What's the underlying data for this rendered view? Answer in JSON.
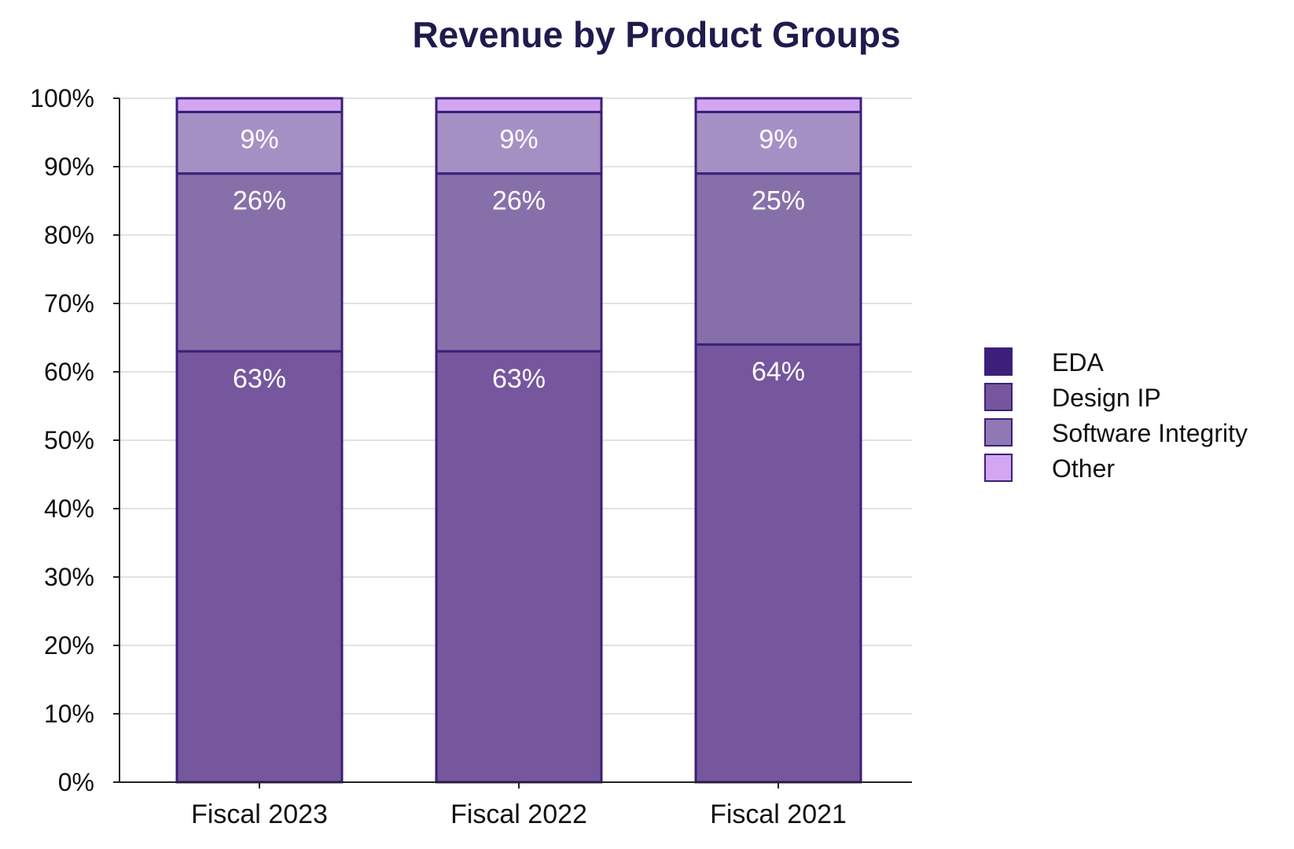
{
  "chart_data": {
    "type": "bar",
    "stacked": true,
    "title": "Revenue by Product Groups",
    "xlabel": "",
    "ylabel": "",
    "ylim": [
      0,
      100
    ],
    "y_ticks": [
      "0%",
      "10%",
      "20%",
      "30%",
      "40%",
      "50%",
      "60%",
      "70%",
      "80%",
      "90%",
      "100%"
    ],
    "categories": [
      "Fiscal 2023",
      "Fiscal 2022",
      "Fiscal 2021"
    ],
    "series": [
      {
        "name": "EDA",
        "values": [
          63,
          63,
          64
        ],
        "labels": [
          "63%",
          "63%",
          "64%"
        ],
        "color": "#76569d"
      },
      {
        "name": "Design IP",
        "values": [
          26,
          26,
          25
        ],
        "labels": [
          "26%",
          "26%",
          "25%"
        ],
        "color": "#8770aa"
      },
      {
        "name": "Software Integrity",
        "values": [
          9,
          9,
          9
        ],
        "labels": [
          "9%",
          "9%",
          "9%"
        ],
        "color": "#a590c4"
      },
      {
        "name": "Other",
        "values": [
          2,
          2,
          2
        ],
        "labels": [
          "",
          "",
          ""
        ],
        "color": "#d3a6f2"
      }
    ],
    "legend_swatch_colors": [
      "#3b1f7a",
      "#76569d",
      "#8f78b3",
      "#d3a6f2"
    ],
    "bar_edge_color": "#3b1f7a",
    "grid": true,
    "legend_position": "right"
  }
}
